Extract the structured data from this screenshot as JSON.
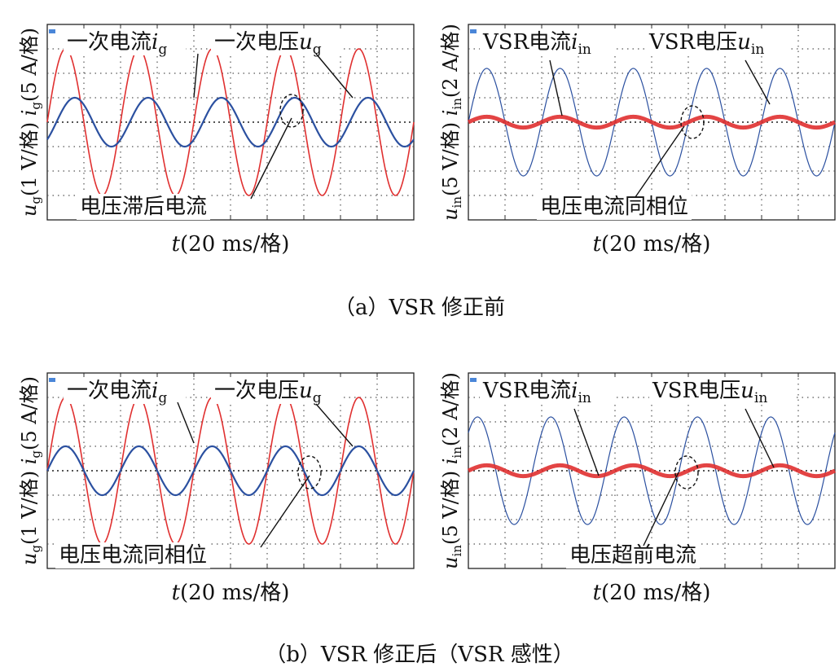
{
  "captions": {
    "a": "（a）VSR 修正前",
    "b": "（b）VSR 修正后（VSR 感性）"
  },
  "colors": {
    "voltage_red": "#e03030",
    "current_blue": "#2b50a0",
    "grid": "#555555"
  },
  "chart_data": [
    {
      "id": "a-left",
      "type": "line",
      "xlabel": "t(20 ms/格)",
      "ylabel": "u_g(1 V/格) i_g(5 A/格)",
      "x_divisions": 10,
      "y_divisions": 8,
      "grid": true,
      "annotations": {
        "current_label": "一次电流",
        "voltage_label": "一次电压",
        "phase_note": "电压滞后电流"
      },
      "series": [
        {
          "name": "一次电流i_g",
          "color": "#e03030",
          "amplitude_div": 3.0,
          "period_div": 2.0,
          "phase_div": 0.0,
          "stroke": 1.6
        },
        {
          "name": "一次电压u_g",
          "color": "#2b50a0",
          "amplitude_div": 1.0,
          "period_div": 2.0,
          "phase_div": 0.25,
          "stroke": 2.2
        }
      ]
    },
    {
      "id": "a-right",
      "type": "line",
      "xlabel": "t(20 ms/格)",
      "ylabel": "u_in(5 V/格) i_in(2 A/格)",
      "x_divisions": 10,
      "y_divisions": 8,
      "grid": true,
      "annotations": {
        "current_label": "VSR电流",
        "voltage_label": "VSR电压",
        "phase_note": "电压电流同相位"
      },
      "series": [
        {
          "name": "VSR电压u_in",
          "color": "#2b50a0",
          "amplitude_div": 2.2,
          "period_div": 2.0,
          "phase_div": 0.0,
          "stroke": 1.2
        },
        {
          "name": "VSR电流i_in",
          "color": "#e03030",
          "amplitude_div": 0.22,
          "period_div": 2.0,
          "phase_div": 0.0,
          "stroke": 5
        }
      ]
    },
    {
      "id": "b-left",
      "type": "line",
      "xlabel": "t(20 ms/格)",
      "ylabel": "u_g(1 V/格) i_g(5 A/格)",
      "x_divisions": 10,
      "y_divisions": 8,
      "grid": true,
      "annotations": {
        "current_label": "一次电流",
        "voltage_label": "一次电压",
        "phase_note": "电压电流同相位"
      },
      "series": [
        {
          "name": "一次电流i_g",
          "color": "#e03030",
          "amplitude_div": 3.0,
          "period_div": 2.0,
          "phase_div": 0.0,
          "stroke": 1.6
        },
        {
          "name": "一次电压u_g",
          "color": "#2b50a0",
          "amplitude_div": 1.0,
          "period_div": 2.0,
          "phase_div": 0.0,
          "stroke": 2.2
        }
      ]
    },
    {
      "id": "b-right",
      "type": "line",
      "xlabel": "t(20 ms/格)",
      "ylabel": "u_in(5 V/格) i_in(2 A/格)",
      "x_divisions": 10,
      "y_divisions": 8,
      "grid": true,
      "annotations": {
        "current_label": "VSR电流",
        "voltage_label": "VSR电压",
        "phase_note": "电压超前电流"
      },
      "series": [
        {
          "name": "VSR电压u_in",
          "color": "#2b50a0",
          "amplitude_div": 2.2,
          "period_div": 2.0,
          "phase_div": -0.25,
          "stroke": 1.2
        },
        {
          "name": "VSR电流i_in",
          "color": "#e03030",
          "amplitude_div": 0.22,
          "period_div": 2.0,
          "phase_div": 0.0,
          "stroke": 5
        }
      ]
    }
  ]
}
